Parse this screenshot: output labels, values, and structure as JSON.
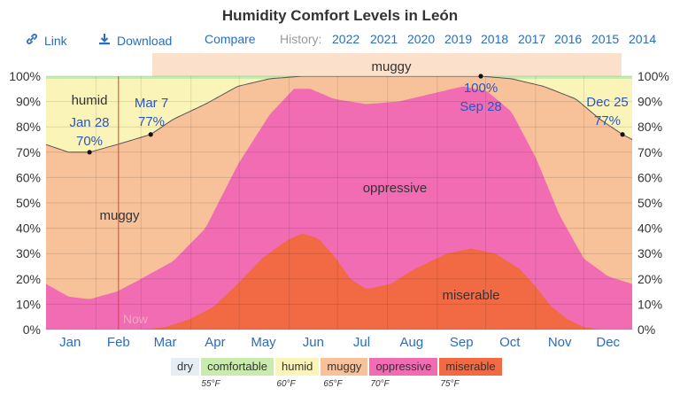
{
  "title": "Humidity Comfort Levels in León",
  "toolbar": {
    "link": "Link",
    "download": "Download",
    "compare": "Compare",
    "history_label": "History:",
    "years": [
      "2022",
      "2021",
      "2020",
      "2019",
      "2018",
      "2017",
      "2016",
      "2015",
      "2014"
    ]
  },
  "chart_data": {
    "type": "area",
    "title": "Humidity Comfort Levels in León",
    "x_unit": "day of year",
    "categories": [
      "Jan",
      "Feb",
      "Mar",
      "Apr",
      "May",
      "Jun",
      "Jul",
      "Aug",
      "Sep",
      "Oct",
      "Nov",
      "Dec"
    ],
    "y_ticks": [
      "0%",
      "10%",
      "20%",
      "30%",
      "40%",
      "50%",
      "60%",
      "70%",
      "80%",
      "90%",
      "100%"
    ],
    "ylim": [
      0,
      100
    ],
    "series": [
      {
        "name": "muggy",
        "color": "#f7c29a",
        "points": [
          [
            1,
            73
          ],
          [
            15,
            70
          ],
          [
            28,
            70
          ],
          [
            45,
            73
          ],
          [
            66,
            77
          ],
          [
            80,
            83
          ],
          [
            100,
            89
          ],
          [
            120,
            96
          ],
          [
            140,
            99
          ],
          [
            160,
            100
          ],
          [
            200,
            100
          ],
          [
            240,
            100
          ],
          [
            271,
            100
          ],
          [
            290,
            99
          ],
          [
            310,
            96
          ],
          [
            330,
            91
          ],
          [
            345,
            83
          ],
          [
            359,
            77
          ],
          [
            365,
            75
          ]
        ]
      },
      {
        "name": "oppressive",
        "color": "#f26cb4",
        "points": [
          [
            1,
            18
          ],
          [
            15,
            13
          ],
          [
            28,
            12
          ],
          [
            45,
            15
          ],
          [
            60,
            20
          ],
          [
            80,
            27
          ],
          [
            100,
            40
          ],
          [
            120,
            65
          ],
          [
            140,
            85
          ],
          [
            155,
            95
          ],
          [
            165,
            95
          ],
          [
            180,
            91
          ],
          [
            200,
            89
          ],
          [
            220,
            90
          ],
          [
            240,
            93
          ],
          [
            260,
            96
          ],
          [
            275,
            94
          ],
          [
            290,
            86
          ],
          [
            305,
            68
          ],
          [
            320,
            45
          ],
          [
            335,
            28
          ],
          [
            350,
            21
          ],
          [
            365,
            18
          ]
        ]
      },
      {
        "name": "miserable",
        "color": "#f26a44",
        "points": [
          [
            1,
            0
          ],
          [
            60,
            0
          ],
          [
            75,
            1
          ],
          [
            90,
            4
          ],
          [
            105,
            9
          ],
          [
            120,
            18
          ],
          [
            135,
            28
          ],
          [
            150,
            35
          ],
          [
            160,
            38
          ],
          [
            170,
            36
          ],
          [
            180,
            29
          ],
          [
            190,
            20
          ],
          [
            200,
            16
          ],
          [
            215,
            18
          ],
          [
            230,
            24
          ],
          [
            250,
            30
          ],
          [
            265,
            32
          ],
          [
            280,
            30
          ],
          [
            295,
            24
          ],
          [
            305,
            17
          ],
          [
            315,
            9
          ],
          [
            325,
            4
          ],
          [
            335,
            1
          ],
          [
            345,
            0
          ],
          [
            365,
            0
          ]
        ]
      }
    ],
    "annotations": [
      {
        "label": "Jan 28",
        "value": "70%",
        "day": 28,
        "pct": 70
      },
      {
        "label": "Mar 7",
        "value": "77%",
        "day": 66,
        "pct": 77
      },
      {
        "label": "100%",
        "value": "Sep 28",
        "day": 271,
        "pct": 100
      },
      {
        "label": "Dec 25",
        "value": "77%",
        "day": 359,
        "pct": 77
      }
    ],
    "band_labels": [
      "humid",
      "muggy",
      "muggy",
      "oppressive",
      "miserable"
    ],
    "now_label": "Now",
    "now_day": 46
  },
  "legend": [
    {
      "label": "dry",
      "color": "#e6eef4"
    },
    {
      "label": "comfortable",
      "color": "#c9ecae"
    },
    {
      "label": "humid",
      "color": "#fbf4b8"
    },
    {
      "label": "muggy",
      "color": "#f7c29a"
    },
    {
      "label": "oppressive",
      "color": "#f26cb4"
    },
    {
      "label": "miserable",
      "color": "#f26a44"
    }
  ],
  "temps": [
    "55°F",
    "60°F",
    "65°F",
    "70°F",
    "75°F"
  ]
}
